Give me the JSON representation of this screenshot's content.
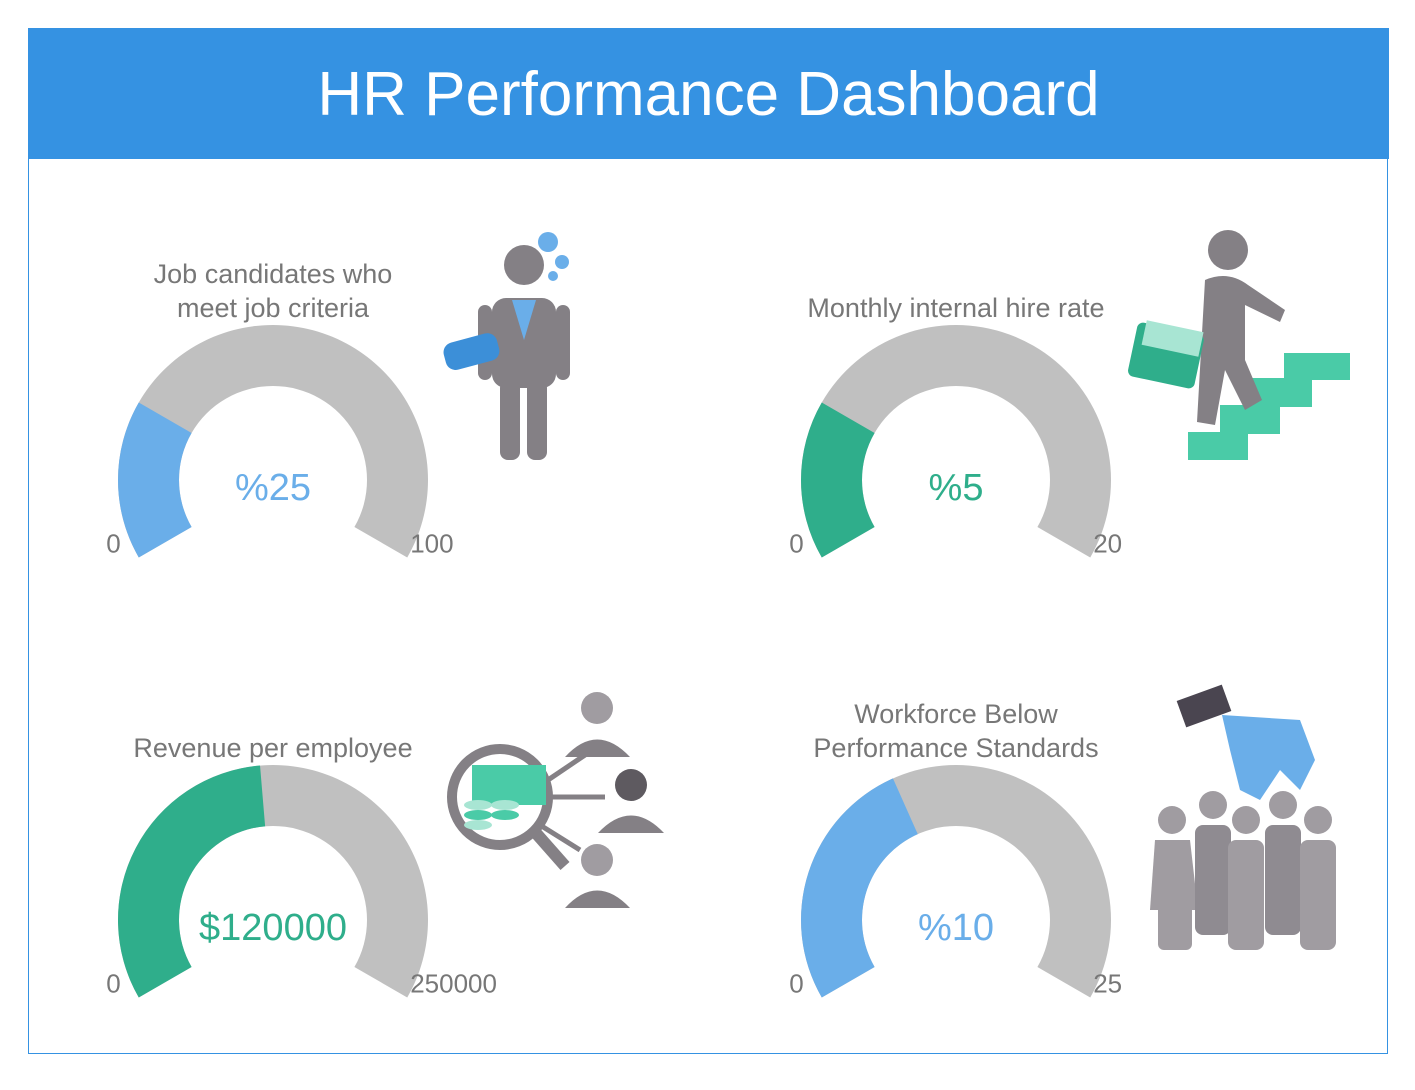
{
  "title": "HR Performance Dashboard",
  "chart_data": [
    {
      "type": "gauge",
      "title": "Job candidates who meet job criteria",
      "values": [
        25
      ],
      "value_labels": [
        "%25"
      ],
      "ylim": [
        0,
        100
      ],
      "yticks": [
        0,
        100
      ],
      "color": "#6aaee9",
      "track_color": "#c0c0c0"
    },
    {
      "type": "gauge",
      "title": "Monthly internal hire rate",
      "values": [
        5
      ],
      "value_labels": [
        "%5"
      ],
      "ylim": [
        0,
        20
      ],
      "yticks": [
        0,
        20
      ],
      "color": "#2fae8b",
      "track_color": "#c0c0c0"
    },
    {
      "type": "gauge",
      "title": "Revenue per employee",
      "values": [
        120000
      ],
      "value_labels": [
        "$120000"
      ],
      "ylim": [
        0,
        250000
      ],
      "yticks": [
        0,
        250000
      ],
      "color": "#2fae8b",
      "track_color": "#c0c0c0"
    },
    {
      "type": "gauge",
      "title": "Workforce Below Performance Standards",
      "values": [
        10
      ],
      "value_labels": [
        "%10"
      ],
      "ylim": [
        0,
        25
      ],
      "yticks": [
        0,
        25
      ],
      "color": "#6aaee9",
      "track_color": "#c0c0c0"
    }
  ]
}
